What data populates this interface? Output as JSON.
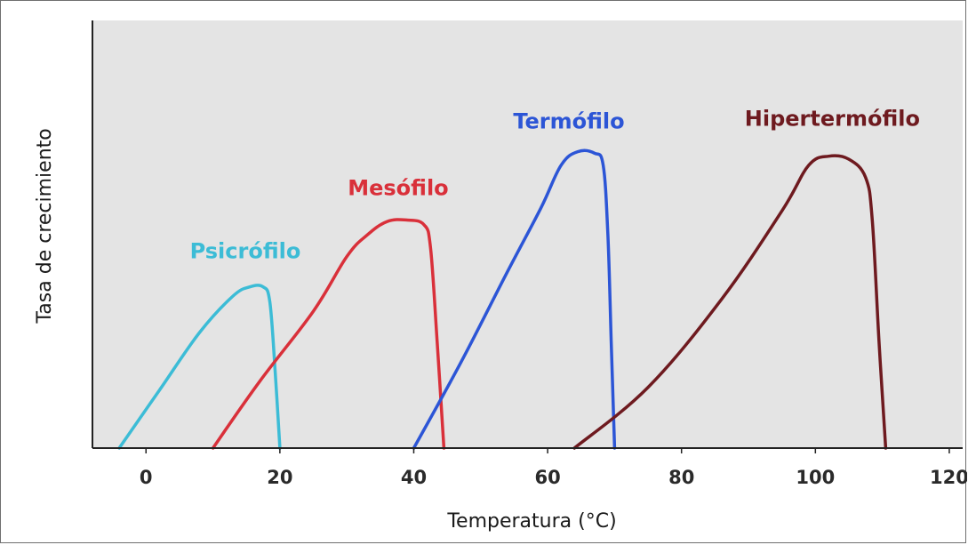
{
  "chart_data": {
    "type": "line",
    "title": "",
    "xlabel": "Temperatura (°C)",
    "ylabel": "Tasa de crecimiento",
    "xlim": [
      -8,
      122
    ],
    "ylim": [
      0,
      100
    ],
    "x_ticks": [
      0,
      20,
      40,
      60,
      80,
      100,
      120
    ],
    "grid": false,
    "legend": "none (series labelled directly above each curve)",
    "background": "#e4e4e4",
    "series": [
      {
        "name": "Psicrófilo",
        "color": "#3cbcd6",
        "points": [
          [
            -4,
            0
          ],
          [
            2,
            19
          ],
          [
            8,
            38
          ],
          [
            13,
            50
          ],
          [
            15.5,
            53
          ],
          [
            17.5,
            53
          ],
          [
            18.5,
            48
          ],
          [
            19.3,
            25
          ],
          [
            20,
            0
          ]
        ]
      },
      {
        "name": "Mesófilo",
        "color": "#d9303a",
        "points": [
          [
            10,
            0
          ],
          [
            17,
            22
          ],
          [
            25,
            45
          ],
          [
            30,
            63
          ],
          [
            33,
            70
          ],
          [
            36,
            74.5
          ],
          [
            39,
            75
          ],
          [
            41.5,
            73.5
          ],
          [
            42.5,
            66
          ],
          [
            43.5,
            35
          ],
          [
            44.5,
            0
          ]
        ]
      },
      {
        "name": "Termófilo",
        "color": "#2c55d6",
        "points": [
          [
            40,
            0
          ],
          [
            47,
            28
          ],
          [
            54,
            58
          ],
          [
            59,
            79
          ],
          [
            62,
            93
          ],
          [
            64.5,
            97.5
          ],
          [
            67,
            97
          ],
          [
            68.3,
            93
          ],
          [
            69,
            70
          ],
          [
            69.5,
            35
          ],
          [
            70,
            0
          ]
        ]
      },
      {
        "name": "Hipertermófilo",
        "color": "#6e1a1f",
        "points": [
          [
            64,
            0
          ],
          [
            75,
            20
          ],
          [
            86,
            49
          ],
          [
            95,
            78
          ],
          [
            99,
            93
          ],
          [
            102,
            96
          ],
          [
            105,
            95
          ],
          [
            107.5,
            89
          ],
          [
            108.5,
            75
          ],
          [
            109.5,
            35
          ],
          [
            110.5,
            0
          ]
        ]
      }
    ]
  }
}
